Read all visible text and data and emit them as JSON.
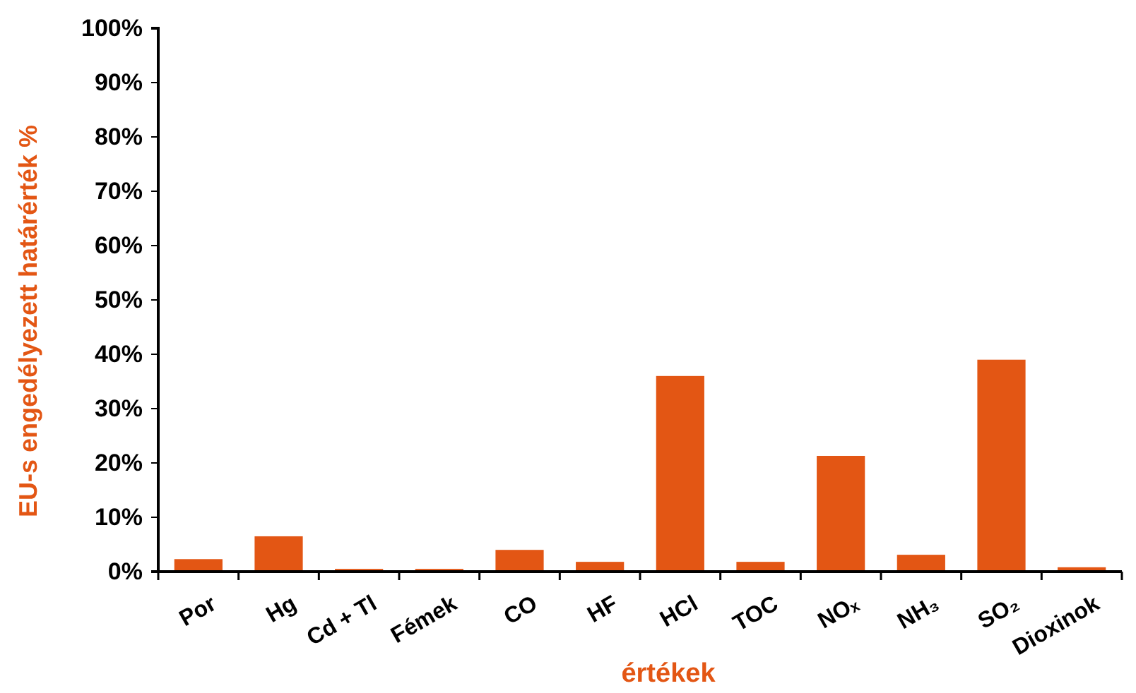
{
  "chart_data": {
    "type": "bar",
    "xlabel": "értékek",
    "ylabel": "EU-s engedélyezett határérték %",
    "categories": [
      "Por",
      "Hg",
      "Cd + Tl",
      "Fémek",
      "CO",
      "HF",
      "HCl",
      "TOC",
      "NOₓ",
      "NH₃",
      "SO₂",
      "Dioxinok"
    ],
    "values": [
      2.3,
      6.5,
      0.5,
      0.5,
      4,
      1.8,
      36,
      1.8,
      21.3,
      3.1,
      39,
      0.8
    ],
    "color": "#e35614",
    "ylim": [
      0,
      100
    ],
    "yticks": [
      {
        "value": 0,
        "label": "0%"
      },
      {
        "value": 10,
        "label": "10%"
      },
      {
        "value": 20,
        "label": "20%"
      },
      {
        "value": 30,
        "label": "30%"
      },
      {
        "value": 40,
        "label": "40%"
      },
      {
        "value": 50,
        "label": "50%"
      },
      {
        "value": 60,
        "label": "60%"
      },
      {
        "value": 70,
        "label": "70%"
      },
      {
        "value": 80,
        "label": "80%"
      },
      {
        "value": 90,
        "label": "90%"
      },
      {
        "value": 100,
        "label": "100%"
      }
    ],
    "grid": false
  }
}
